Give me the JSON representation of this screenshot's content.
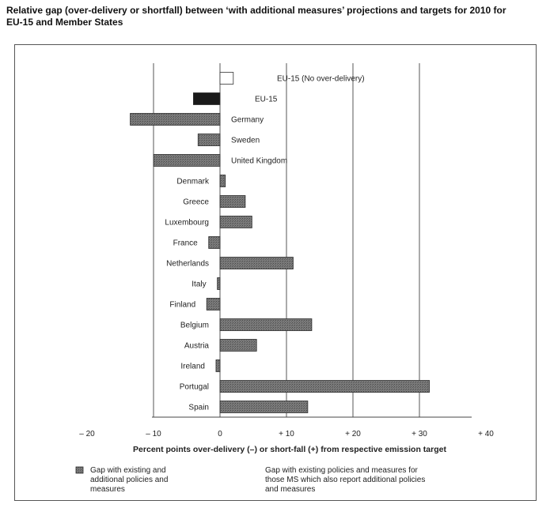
{
  "chart_data": {
    "type": "bar",
    "orientation": "horizontal",
    "title": "Relative gap (over-delivery or shortfall) between ‘with additional measures’ projections and targets for 2010 for EU-15 and Member States",
    "xlabel": "Percent points over-delivery (–) or short-fall (+) from respective emission target",
    "xlim": [
      -20,
      40
    ],
    "xticks": [
      "– 20",
      "– 10",
      "0",
      "+ 10",
      "+ 20",
      "+ 30",
      "+ 40"
    ],
    "xtick_values": [
      -20,
      -10,
      0,
      10,
      20,
      30,
      40
    ],
    "grid": "vertical",
    "categories": [
      "EU-15  (No over-delivery)",
      "EU-15",
      "Germany",
      "Sweden",
      "United Kingdom",
      "Denmark",
      "Greece",
      "Luxembourg",
      "France",
      "Netherlands",
      "Italy",
      "Finland",
      "Belgium",
      "Austria",
      "Ireland",
      "Portugal",
      "Spain"
    ],
    "values": [
      2,
      -4,
      -13.5,
      -3.3,
      -10,
      0.8,
      3.8,
      4.8,
      -1.7,
      11,
      -0.4,
      -2,
      13.8,
      5.5,
      -0.6,
      31.5,
      13.2
    ],
    "bar_styles": [
      "hollow",
      "black",
      "hatched",
      "hatched",
      "hatched",
      "hatched",
      "hatched",
      "hatched",
      "hatched",
      "hatched",
      "hatched",
      "hatched",
      "hatched",
      "hatched",
      "hatched",
      "hatched",
      "hatched"
    ],
    "legend": [
      {
        "label": "Gap with existing and additional policies and measures",
        "style": "hatched"
      },
      {
        "label": "Gap with existing policies and measures for those MS which also report additional policies and measures",
        "style": "dotted"
      }
    ],
    "legend_position": "bottom",
    "colors": {
      "bar": "#6d6d6d",
      "bar_edge": "#2c2c2c",
      "eu15": "#1a1a1a",
      "grid": "#444444"
    }
  }
}
